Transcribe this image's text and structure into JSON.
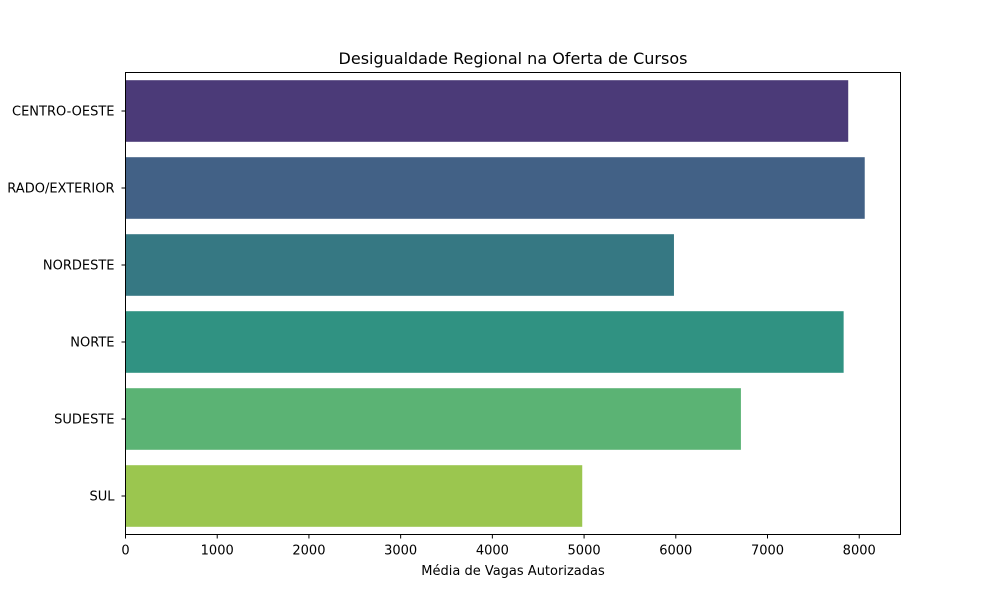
{
  "chart_data": {
    "type": "bar",
    "orientation": "horizontal",
    "title": "Desigualdade Regional na Oferta de Cursos",
    "xlabel": "Média de Vagas Autorizadas",
    "ylabel": "",
    "categories": [
      "CENTRO-OESTE",
      "RADO/EXTERIOR",
      "NORDESTE",
      "NORTE",
      "SUDESTE",
      "SUL"
    ],
    "values": [
      7880,
      8060,
      5980,
      7830,
      6710,
      4980
    ],
    "colors": [
      "#4b3a78",
      "#426186",
      "#367883",
      "#309282",
      "#5bb374",
      "#9bc64f"
    ],
    "xlim": [
      0,
      8450
    ],
    "xticks": [
      0,
      1000,
      2000,
      3000,
      4000,
      5000,
      6000,
      7000,
      8000
    ],
    "grid": false,
    "legend": "none"
  }
}
